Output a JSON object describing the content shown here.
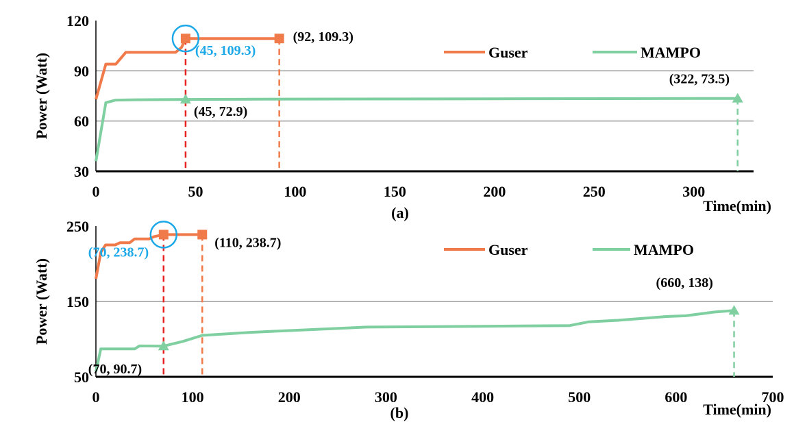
{
  "chart_data": [
    {
      "type": "line",
      "panel_label": "(a)",
      "xlabel": "Time(min)",
      "ylabel": "Power (Watt)",
      "xlim": [
        0,
        330
      ],
      "ylim": [
        30,
        120
      ],
      "xticks": [
        0,
        50,
        100,
        150,
        200,
        250,
        300
      ],
      "yticks": [
        30,
        60,
        90,
        120
      ],
      "grid_y": [
        60,
        90
      ],
      "legend": {
        "placement": "top-right"
      },
      "series": [
        {
          "name": "Guser",
          "color": "#f07a4a",
          "points": [
            [
              0,
              73
            ],
            [
              5,
              94
            ],
            [
              10,
              94
            ],
            [
              15,
              101
            ],
            [
              20,
              101
            ],
            [
              30,
              101
            ],
            [
              40,
              101
            ],
            [
              43,
              104
            ],
            [
              45,
              109.3
            ],
            [
              92,
              109.3
            ]
          ],
          "markers": [
            {
              "x": 45,
              "y": 109.3,
              "shape": "square"
            },
            {
              "x": 92,
              "y": 109.3,
              "shape": "square"
            }
          ]
        },
        {
          "name": "MAMPO",
          "color": "#7fcfa0",
          "points": [
            [
              0,
              36
            ],
            [
              5,
              71
            ],
            [
              10,
              72.5
            ],
            [
              20,
              72.7
            ],
            [
              45,
              72.9
            ],
            [
              100,
              73.1
            ],
            [
              200,
              73.3
            ],
            [
              322,
              73.5
            ]
          ],
          "markers": [
            {
              "x": 45,
              "y": 72.9,
              "shape": "triangle"
            },
            {
              "x": 322,
              "y": 73.5,
              "shape": "triangle"
            }
          ]
        }
      ],
      "droplines": [
        {
          "x": 45,
          "from": 109.3,
          "color": "#e8231f"
        },
        {
          "x": 92,
          "from": 109.3,
          "color": "#f07a4a"
        },
        {
          "x": 322,
          "from": 73.5,
          "color": "#7fcfa0"
        }
      ],
      "highlight_circle": {
        "x": 45,
        "y": 109.3,
        "color": "#1aa8e8"
      },
      "annotations": [
        {
          "text": "(45, 109.3)",
          "x": 45,
          "y": 109.3,
          "color": "#1aa8e8"
        },
        {
          "text": "(92, 109.3)",
          "x": 92,
          "y": 109.3,
          "color": "#000000"
        },
        {
          "text": "(45, 72.9)",
          "x": 45,
          "y": 72.9,
          "color": "#000000"
        },
        {
          "text": "(322, 73.5)",
          "x": 322,
          "y": 73.5,
          "color": "#000000"
        }
      ]
    },
    {
      "type": "line",
      "panel_label": "(b)",
      "xlabel": "Time(min)",
      "ylabel": "Power (Watt)",
      "xlim": [
        0,
        700
      ],
      "ylim": [
        50,
        250
      ],
      "xticks": [
        0,
        100,
        200,
        300,
        400,
        500,
        600,
        700
      ],
      "yticks": [
        50,
        150,
        250
      ],
      "grid_y": [
        150
      ],
      "legend": {
        "placement": "top-right"
      },
      "series": [
        {
          "name": "Guser",
          "color": "#f07a4a",
          "points": [
            [
              0,
              180
            ],
            [
              5,
              215
            ],
            [
              10,
              225
            ],
            [
              20,
              225
            ],
            [
              25,
              228
            ],
            [
              35,
              228
            ],
            [
              40,
              233
            ],
            [
              55,
              233
            ],
            [
              60,
              236
            ],
            [
              70,
              238.7
            ],
            [
              110,
              238.7
            ]
          ],
          "markers": [
            {
              "x": 70,
              "y": 238.7,
              "shape": "square"
            },
            {
              "x": 110,
              "y": 238.7,
              "shape": "square"
            }
          ]
        },
        {
          "name": "MAMPO",
          "color": "#7fcfa0",
          "points": [
            [
              0,
              57
            ],
            [
              5,
              87
            ],
            [
              40,
              87
            ],
            [
              45,
              91
            ],
            [
              70,
              90.7
            ],
            [
              90,
              97
            ],
            [
              110,
              105
            ],
            [
              160,
              109
            ],
            [
              280,
              116
            ],
            [
              400,
              117
            ],
            [
              490,
              118
            ],
            [
              510,
              123
            ],
            [
              540,
              125
            ],
            [
              590,
              130
            ],
            [
              610,
              131
            ],
            [
              640,
              136
            ],
            [
              660,
              138
            ]
          ],
          "markers": [
            {
              "x": 70,
              "y": 90.7,
              "shape": "triangle"
            },
            {
              "x": 660,
              "y": 138,
              "shape": "triangle"
            }
          ]
        }
      ],
      "droplines": [
        {
          "x": 70,
          "from": 238.7,
          "color": "#e8231f"
        },
        {
          "x": 110,
          "from": 238.7,
          "color": "#f07a4a"
        },
        {
          "x": 660,
          "from": 138,
          "color": "#7fcfa0"
        }
      ],
      "highlight_circle": {
        "x": 70,
        "y": 238.7,
        "color": "#1aa8e8"
      },
      "annotations": [
        {
          "text": "(70, 238.7)",
          "x": 70,
          "y": 238.7,
          "color": "#1aa8e8"
        },
        {
          "text": "(110, 238.7)",
          "x": 110,
          "y": 238.7,
          "color": "#000000"
        },
        {
          "text": "(70, 90.7)",
          "x": 70,
          "y": 90.7,
          "color": "#000000"
        },
        {
          "text": "(660, 138)",
          "x": 660,
          "y": 138,
          "color": "#000000"
        }
      ]
    }
  ]
}
